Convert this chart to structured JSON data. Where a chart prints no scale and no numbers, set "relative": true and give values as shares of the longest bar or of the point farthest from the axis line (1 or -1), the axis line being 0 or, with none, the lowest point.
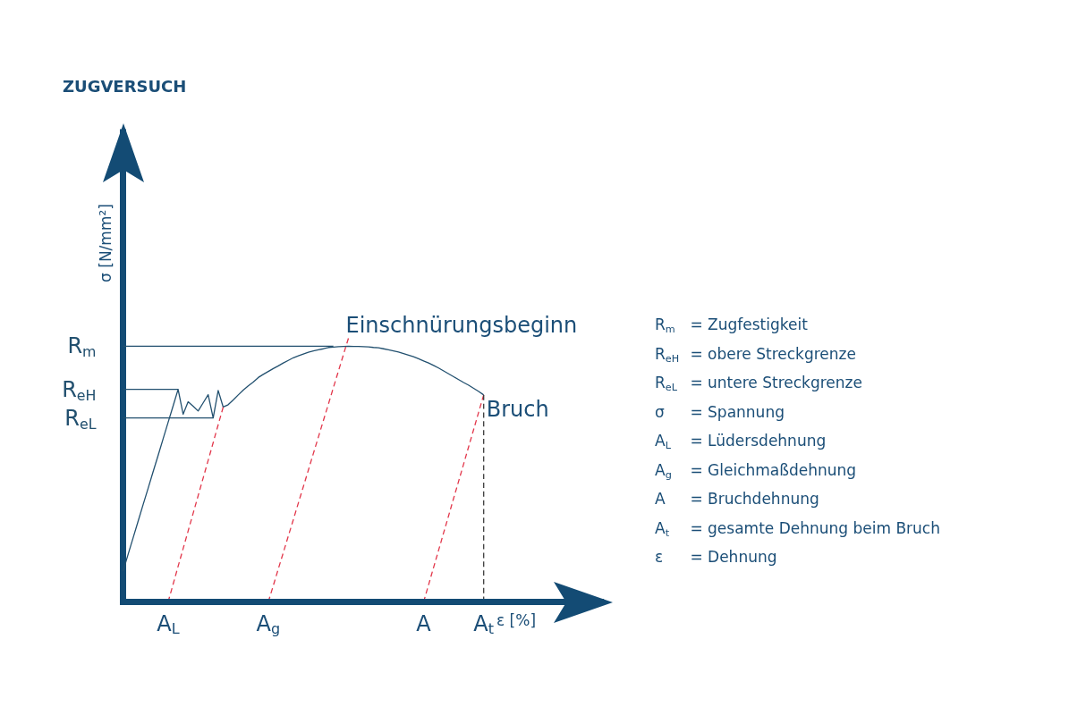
{
  "chart_data": {
    "type": "line",
    "relative": true,
    "title": "ZUGVERSUCH",
    "xlabel": "ε [%]",
    "ylabel": "σ [N/mm²]",
    "categories": [
      null,
      null,
      null,
      null,
      null,
      null,
      null,
      null,
      null,
      "A$_{L}$",
      null,
      null,
      null,
      null,
      null,
      null,
      null,
      null,
      null,
      null,
      null,
      null,
      null,
      null,
      null,
      null,
      null,
      null,
      null,
      "A$_{g}$",
      null,
      null,
      null,
      null,
      null,
      null,
      null,
      null,
      null,
      null,
      null,
      null,
      null,
      null,
      null,
      null,
      null,
      null,
      null,
      null,
      null,
      null,
      null,
      null,
      null,
      null,
      null,
      null,
      null,
      null,
      "A",
      null,
      null,
      null,
      null,
      null,
      null,
      null,
      null,
      null,
      null,
      null,
      "A$_{t}$",
      null,
      null,
      null,
      null,
      null,
      null,
      null,
      null,
      null,
      null,
      null,
      null,
      null,
      null,
      null,
      null,
      null,
      null,
      null,
      null,
      null,
      null,
      null,
      null
    ],
    "series": [
      {
        "color": "#22506f",
        "values": [
          0.116,
          0.179,
          0.242,
          0.305,
          0.368,
          0.43,
          0.493,
          0.555,
          0.618,
          0.681,
          0.743,
          0.806,
          0.712,
          0.759,
          0.742,
          0.724,
          0.755,
          0.786,
          0.698,
          0.802,
          0.739,
          0.748,
          0.766,
          0.785,
          0.803,
          0.819,
          0.834,
          0.851,
          0.863,
          0.874,
          0.885,
          0.895,
          0.906,
          0.916,
          0.926,
          0.933,
          0.94,
          0.947,
          0.952,
          0.956,
          0.96,
          0.965,
          0.966,
          0.968,
          0.969,
          0.97,
          0.969,
          0.969,
          0.968,
          0.967,
          0.965,
          0.964,
          0.96,
          0.956,
          0.952,
          0.948,
          0.942,
          0.936,
          0.93,
          0.922,
          0.914,
          0.906,
          0.897,
          0.887,
          0.876,
          0.865,
          0.854,
          0.843,
          0.832,
          0.822,
          0.81,
          0.798,
          0.785,
          null,
          null,
          null,
          null,
          null,
          null,
          null,
          null,
          null,
          null,
          null,
          null,
          null,
          null,
          null,
          null,
          null,
          null,
          null,
          null,
          null,
          null,
          null,
          null
        ]
      },
      {
        "name": "R$_{m}$",
        "color": "#22506f",
        "values": [
          0.97,
          0.97,
          0.97,
          0.97,
          0.97,
          0.97,
          0.97,
          0.97,
          0.97,
          0.97,
          0.97,
          0.97,
          0.97,
          0.97,
          0.97,
          0.97,
          0.97,
          0.97,
          0.97,
          0.97,
          0.97,
          0.97,
          0.97,
          0.97,
          0.97,
          0.97,
          0.97,
          0.97,
          0.97,
          0.97,
          0.97,
          0.97,
          0.97,
          0.97,
          0.97,
          0.97,
          0.97,
          0.97,
          0.97,
          0.97,
          0.97,
          0.97,
          0.97,
          null,
          null,
          null,
          null,
          null,
          null,
          null,
          null,
          null,
          null,
          null,
          null,
          null,
          null,
          null,
          null,
          null,
          null,
          null,
          null,
          null,
          null,
          null,
          null,
          null,
          null,
          null,
          null,
          null,
          null,
          null,
          null,
          null,
          null,
          null,
          null,
          null,
          null,
          null,
          null,
          null,
          null,
          null,
          null,
          null,
          null,
          null,
          null,
          null,
          null,
          null,
          null,
          null,
          null
        ]
      },
      {
        "name": "R$_{eH}$",
        "color": "#22506f",
        "values": [
          0.806,
          0.806,
          0.806,
          0.806,
          0.806,
          0.806,
          0.806,
          0.806,
          0.806,
          0.806,
          0.806,
          0.806,
          null,
          null,
          null,
          null,
          null,
          null,
          null,
          null,
          null,
          null,
          null,
          null,
          null,
          null,
          null,
          null,
          null,
          null,
          null,
          null,
          null,
          null,
          null,
          null,
          null,
          null,
          null,
          null,
          null,
          null,
          null,
          null,
          null,
          null,
          null,
          null,
          null,
          null,
          null,
          null,
          null,
          null,
          null,
          null,
          null,
          null,
          null,
          null,
          null,
          null,
          null,
          null,
          null,
          null,
          null,
          null,
          null,
          null,
          null,
          null,
          null,
          null,
          null,
          null,
          null,
          null,
          null,
          null,
          null,
          null,
          null,
          null,
          null,
          null,
          null,
          null,
          null,
          null,
          null,
          null,
          null,
          null,
          null,
          null,
          null
        ]
      },
      {
        "name": "R$_{eL}$",
        "color": "#22506f",
        "values": [
          0.698,
          0.698,
          0.698,
          0.698,
          0.698,
          0.698,
          0.698,
          0.698,
          0.698,
          0.698,
          0.698,
          0.698,
          0.698,
          0.698,
          0.698,
          0.698,
          0.698,
          0.698,
          0.698,
          null,
          null,
          null,
          null,
          null,
          null,
          null,
          null,
          null,
          null,
          null,
          null,
          null,
          null,
          null,
          null,
          null,
          null,
          null,
          null,
          null,
          null,
          null,
          null,
          null,
          null,
          null,
          null,
          null,
          null,
          null,
          null,
          null,
          null,
          null,
          null,
          null,
          null,
          null,
          null,
          null,
          null,
          null,
          null,
          null,
          null,
          null,
          null,
          null,
          null,
          null,
          null,
          null,
          null,
          null,
          null,
          null,
          null,
          null,
          null,
          null,
          null,
          null,
          null,
          null,
          null,
          null,
          null,
          null,
          null,
          null,
          null,
          null,
          null,
          null,
          null,
          null,
          null
        ]
      },
      {
        "color": "#e2364a",
        "line_style": "dashed",
        "values": [
          null,
          null,
          null,
          null,
          null,
          null,
          null,
          null,
          null,
          0,
          0.067,
          0.135,
          0.202,
          0.269,
          0.336,
          0.403,
          0.47,
          0.537,
          0.604,
          0.672,
          0.739,
          null,
          null,
          null,
          null,
          null,
          null,
          null,
          null,
          null,
          null,
          null,
          null,
          null,
          null,
          null,
          null,
          null,
          null,
          null,
          null,
          null,
          null,
          null,
          null,
          null,
          null,
          null,
          null,
          null,
          null,
          null,
          null,
          null,
          null,
          null,
          null,
          null,
          null,
          null,
          null,
          null,
          null,
          null,
          null,
          null,
          null,
          null,
          null,
          null,
          null,
          null,
          null,
          null,
          null,
          null,
          null,
          null,
          null,
          null,
          null,
          null,
          null,
          null,
          null,
          null,
          null,
          null,
          null,
          null,
          null,
          null,
          null,
          null,
          null,
          null,
          null
        ]
      },
      {
        "color": "#e2364a",
        "line_style": "dashed",
        "values": [
          null,
          null,
          null,
          null,
          null,
          null,
          null,
          null,
          null,
          null,
          null,
          null,
          null,
          null,
          null,
          null,
          null,
          null,
          null,
          null,
          null,
          null,
          null,
          null,
          null,
          null,
          null,
          null,
          null,
          0,
          0.062,
          0.125,
          0.187,
          0.25,
          0.312,
          0.375,
          0.437,
          0.5,
          0.563,
          0.625,
          0.688,
          0.75,
          0.813,
          0.875,
          0.938,
          1.0,
          null,
          null,
          null,
          null,
          null,
          null,
          null,
          null,
          null,
          null,
          null,
          null,
          null,
          null,
          null,
          null,
          null,
          null,
          null,
          null,
          null,
          null,
          null,
          null,
          null,
          null,
          null,
          null,
          null,
          null,
          null,
          null,
          null,
          null,
          null,
          null,
          null,
          null,
          null,
          null,
          null,
          null,
          null,
          null,
          null,
          null,
          null,
          null,
          null,
          null,
          null
        ]
      },
      {
        "color": "#e2364a",
        "line_style": "dashed",
        "values": [
          null,
          null,
          null,
          null,
          null,
          null,
          null,
          null,
          null,
          null,
          null,
          null,
          null,
          null,
          null,
          null,
          null,
          null,
          null,
          null,
          null,
          null,
          null,
          null,
          null,
          null,
          null,
          null,
          null,
          null,
          null,
          null,
          null,
          null,
          null,
          null,
          null,
          null,
          null,
          null,
          null,
          null,
          null,
          null,
          null,
          null,
          null,
          null,
          null,
          null,
          null,
          null,
          null,
          null,
          null,
          null,
          null,
          null,
          null,
          null,
          0,
          0.065,
          0.131,
          0.196,
          0.262,
          0.327,
          0.393,
          0.458,
          0.523,
          0.589,
          0.654,
          0.72,
          0.785,
          null,
          null,
          null,
          null,
          null,
          null,
          null,
          null,
          null,
          null,
          null,
          null,
          null,
          null,
          null,
          null,
          null,
          null,
          null,
          null,
          null,
          null,
          null,
          null
        ]
      },
      {
        "color": "#3a3a3a",
        "line_style": "dashed",
        "x": [
          "A$_{t}$",
          "A$_{t}$"
        ],
        "values": [
          0,
          0.785
        ]
      }
    ],
    "ref_lines": [
      {
        "axis": "y",
        "value": 0,
        "color": "#134b74"
      }
    ],
    "annotations": [
      {
        "text": "Bruch",
        "x": "A$_{t}$",
        "y": 0.785
      },
      "Einschnürungsbeginn",
      "R$_{m}$ = Zugfestigkeit",
      "R$_{eH}$ = obere Streckgrenze",
      "R$_{eL}$ = untere Streckgrenze",
      "σ = Spannung",
      "A$_{L}$ = Lüdersdehnung",
      "A$_{g}$ = Gleichmaßdehnung",
      "A = Bruchdehnung",
      "A$_{t}$ = gesamte Dehnung beim Bruch",
      "ε = Dehnung"
    ]
  }
}
